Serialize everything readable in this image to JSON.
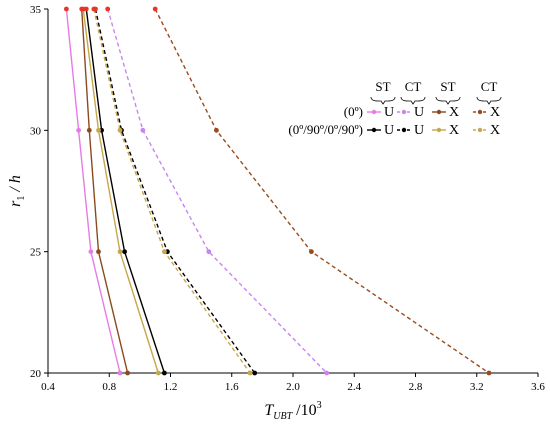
{
  "chart_data": {
    "type": "line",
    "title": "",
    "xlabel": {
      "main": "T",
      "sub": "UBT",
      "suffix": " /10",
      "sup": "3"
    },
    "ylabel": {
      "main": "r",
      "sub": "1",
      "suffix": " / h"
    },
    "xlim": [
      0.4,
      3.6
    ],
    "ylim": [
      20,
      35
    ],
    "xticks": [
      0.4,
      0.8,
      1.2,
      1.6,
      2.0,
      2.4,
      2.8,
      3.2,
      3.6
    ],
    "xtick_labels": [
      "0.4",
      "0.8",
      "1.2",
      "1.6",
      "2.0",
      "2.4",
      "2.8",
      "3.2",
      "3.6"
    ],
    "yticks": [
      20,
      25,
      30,
      35
    ],
    "ytick_labels": [
      "20",
      "25",
      "30",
      "35"
    ],
    "grid": false,
    "legend": {
      "placement": "top-right",
      "column_headers": [
        "ST",
        "CT",
        "ST",
        "CT"
      ],
      "row_labels": [
        "(0º)",
        "(0º/90º/0º/90º)"
      ],
      "symbols": [
        "U",
        "U",
        "X",
        "X"
      ]
    },
    "series": [
      {
        "key": "u0_st",
        "color": "#e77be6",
        "dash": "solid",
        "points": [
          [
            0.52,
            35
          ],
          [
            0.6,
            30
          ],
          [
            0.68,
            25
          ],
          [
            0.87,
            20
          ]
        ]
      },
      {
        "key": "u0_ct",
        "color": "#c885f0",
        "dash": "dashed",
        "points": [
          [
            0.79,
            35
          ],
          [
            1.02,
            30
          ],
          [
            1.45,
            25
          ],
          [
            2.22,
            20
          ]
        ]
      },
      {
        "key": "x0_st",
        "color": "#8b4a1e",
        "dash": "solid",
        "points": [
          [
            0.62,
            35
          ],
          [
            0.67,
            30
          ],
          [
            0.73,
            25
          ],
          [
            0.92,
            20
          ]
        ]
      },
      {
        "key": "x0_ct",
        "color": "#9a4b1c",
        "dash": "dashed",
        "points": [
          [
            1.1,
            35
          ],
          [
            1.5,
            30
          ],
          [
            2.12,
            25
          ],
          [
            3.28,
            20
          ]
        ]
      },
      {
        "key": "u4_st",
        "color": "#000000",
        "dash": "solid",
        "points": [
          [
            0.65,
            35
          ],
          [
            0.75,
            30
          ],
          [
            0.9,
            25
          ],
          [
            1.16,
            20
          ]
        ]
      },
      {
        "key": "u4_ct",
        "color": "#000000",
        "dash": "dashed",
        "points": [
          [
            0.71,
            35
          ],
          [
            0.88,
            30
          ],
          [
            1.18,
            25
          ],
          [
            1.75,
            20
          ]
        ]
      },
      {
        "key": "x4_st",
        "color": "#c8a64a",
        "dash": "solid",
        "points": [
          [
            0.63,
            35
          ],
          [
            0.73,
            30
          ],
          [
            0.87,
            25
          ],
          [
            1.12,
            20
          ]
        ]
      },
      {
        "key": "x4_ct",
        "color": "#c8a64a",
        "dash": "dashed",
        "points": [
          [
            0.7,
            35
          ],
          [
            0.87,
            30
          ],
          [
            1.16,
            25
          ],
          [
            1.72,
            20
          ]
        ]
      }
    ],
    "highlight_marker_color": "#e8352a"
  }
}
